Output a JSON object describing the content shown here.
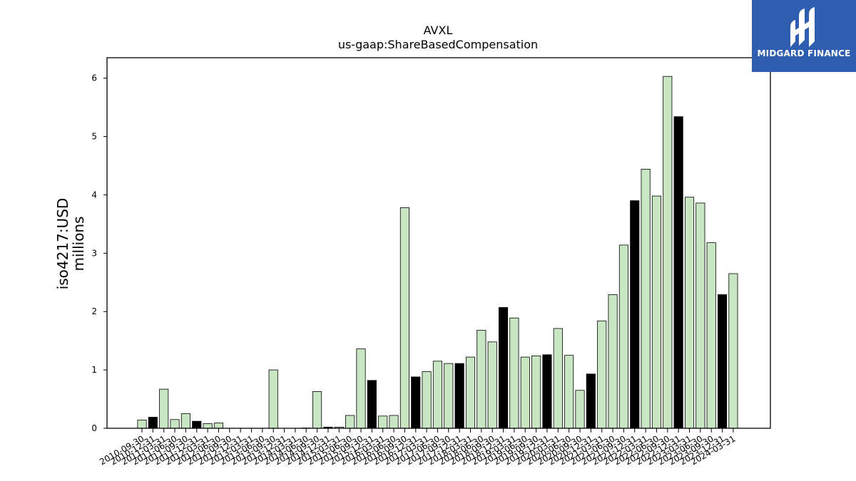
{
  "chart_data": {
    "type": "bar",
    "title": "AVXL",
    "subtitle": "us-gaap:ShareBasedCompensation",
    "ylabel": "iso4217:USD",
    "ylabel2": "millions",
    "ylim": [
      0,
      6.35
    ],
    "yticks": [
      "0",
      "1",
      "2",
      "3",
      "4",
      "5",
      "6"
    ],
    "categories": [
      "2010-09-30",
      "2010-12-31",
      "2011-03-31",
      "2011-06-30",
      "2011-09-30",
      "2011-12-31",
      "2012-03-31",
      "2012-06-30",
      "2012-09-30",
      "2012-12-31",
      "2013-03-31",
      "2013-06-30",
      "2013-09-30",
      "2013-12-31",
      "2014-03-31",
      "2014-06-30",
      "2014-09-30",
      "2014-12-31",
      "2015-03-31",
      "2015-06-30",
      "2015-09-30",
      "2015-12-31",
      "2016-03-31",
      "2016-06-30",
      "2016-09-30",
      "2016-12-31",
      "2017-03-31",
      "2017-06-30",
      "2017-09-30",
      "2017-12-31",
      "2018-03-31",
      "2018-06-30",
      "2018-09-30",
      "2018-12-31",
      "2019-03-31",
      "2019-06-30",
      "2019-09-30",
      "2019-12-31",
      "2020-03-31",
      "2020-06-30",
      "2020-09-30",
      "2020-12-31",
      "2021-03-31",
      "2021-06-30",
      "2021-09-30",
      "2021-12-31",
      "2022-03-31",
      "2022-06-30",
      "2022-09-30",
      "2022-12-31",
      "2023-03-31",
      "2023-06-30",
      "2023-09-30",
      "2023-12-31",
      "2024-03-31"
    ],
    "values": [
      0.14,
      0.19,
      0.67,
      0.15,
      0.25,
      0.12,
      0.08,
      0.09,
      0,
      0,
      0,
      0,
      1.0,
      0,
      0,
      0.005,
      0.63,
      0.02,
      0.02,
      0.22,
      1.36,
      0.82,
      0.21,
      0.22,
      3.78,
      0.88,
      0.97,
      1.15,
      1.11,
      1.11,
      1.22,
      1.68,
      1.48,
      2.07,
      1.89,
      1.22,
      1.24,
      1.26,
      1.71,
      1.25,
      0.65,
      0.93,
      1.84,
      2.29,
      3.14,
      3.9,
      4.44,
      3.98,
      6.03,
      5.34,
      3.96,
      3.86,
      3.18,
      2.29,
      2.65
    ],
    "fiscal_year_end": [
      false,
      true,
      false,
      false,
      false,
      true,
      false,
      false,
      false,
      true,
      false,
      false,
      false,
      true,
      false,
      false,
      false,
      true,
      false,
      false,
      false,
      true,
      false,
      false,
      false,
      true,
      false,
      false,
      false,
      true,
      false,
      false,
      false,
      true,
      false,
      false,
      false,
      true,
      false,
      false,
      false,
      true,
      false,
      false,
      false,
      true,
      false,
      false,
      false,
      true,
      false,
      false,
      false,
      true,
      false
    ],
    "colors": {
      "quarter": "#c9e6c2",
      "year_end": "#000000",
      "edge": "#000000"
    },
    "grid": false,
    "legend": "none"
  },
  "logo": {
    "text": "MIDGARD FINANCE",
    "icon": "midgard-logo-icon",
    "background": "#2f5db0"
  }
}
